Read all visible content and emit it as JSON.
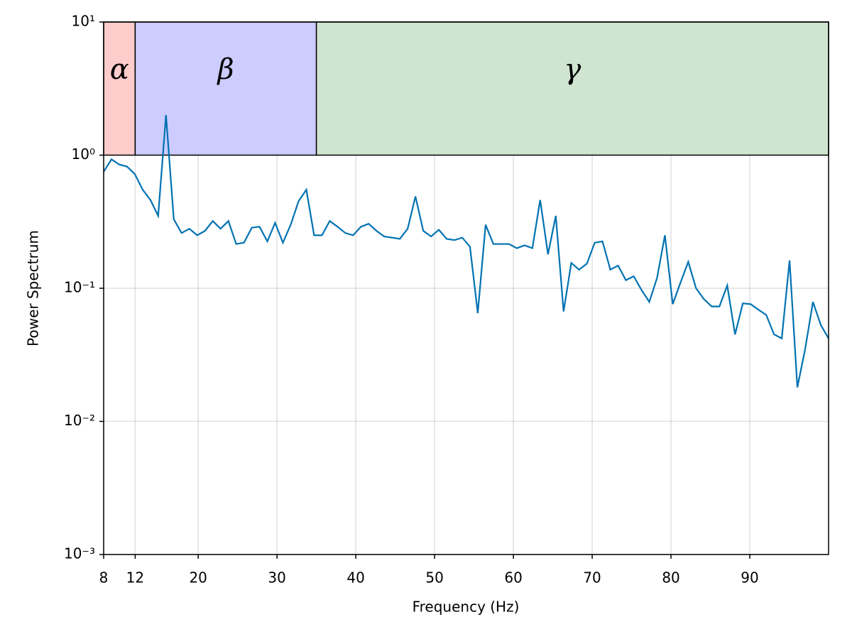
{
  "chart_data": {
    "type": "line",
    "xlabel": "Frequency (Hz)",
    "ylabel": "Power Spectrum",
    "xlim": [
      8,
      100
    ],
    "xticks": [
      8,
      12,
      20,
      30,
      40,
      50,
      60,
      70,
      80,
      90
    ],
    "ylim": [
      0.001,
      10
    ],
    "yscale": "log",
    "yticks": [
      {
        "value": 0.001,
        "label": "10⁻³"
      },
      {
        "value": 0.01,
        "label": "10⁻²"
      },
      {
        "value": 0.1,
        "label": "10⁻¹"
      },
      {
        "value": 1,
        "label": "10⁰"
      },
      {
        "value": 10,
        "label": "10¹"
      }
    ],
    "grid": true,
    "bands": [
      {
        "label": "α",
        "x": [
          8,
          12
        ],
        "y": [
          1,
          10
        ],
        "color": "#ffcccc"
      },
      {
        "label": "β",
        "x": [
          12,
          35
        ],
        "y": [
          1,
          10
        ],
        "color": "#ccccff"
      },
      {
        "label": "γ",
        "x": [
          35,
          100
        ],
        "y": [
          1,
          10
        ],
        "color": "#cfe5cf"
      }
    ],
    "x": [
      8.0,
      8.99,
      9.98,
      10.97,
      11.96,
      12.95,
      13.94,
      14.92,
      15.91,
      16.9,
      17.89,
      18.88,
      19.87,
      20.86,
      21.85,
      22.84,
      23.83,
      24.82,
      25.81,
      26.8,
      27.78,
      28.77,
      29.76,
      30.75,
      31.74,
      32.73,
      33.72,
      34.71,
      35.7,
      36.69,
      37.68,
      38.67,
      39.66,
      40.65,
      41.63,
      42.62,
      43.61,
      44.6,
      45.59,
      46.58,
      47.57,
      48.56,
      49.55,
      50.54,
      51.53,
      52.52,
      53.51,
      54.49,
      55.48,
      56.47,
      57.46,
      58.45,
      59.44,
      60.43,
      61.42,
      62.41,
      63.4,
      64.39,
      65.38,
      66.37,
      67.35,
      68.34,
      69.33,
      70.32,
      71.31,
      72.3,
      73.29,
      74.28,
      75.27,
      76.26,
      77.25,
      78.24,
      79.23,
      80.22,
      81.2,
      82.19,
      83.18,
      84.17,
      85.16,
      86.15,
      87.14,
      88.13,
      89.12,
      90.11,
      91.1,
      92.09,
      93.08,
      94.06,
      95.05,
      96.04,
      97.03,
      98.02,
      99.01,
      100.0
    ],
    "series": [
      {
        "color": "#0072b2",
        "values": [
          0.75,
          0.93,
          0.85,
          0.82,
          0.72,
          0.55,
          0.46,
          0.35,
          2.0,
          0.33,
          0.26,
          0.28,
          0.25,
          0.27,
          0.32,
          0.28,
          0.32,
          0.215,
          0.22,
          0.285,
          0.29,
          0.225,
          0.31,
          0.22,
          0.3,
          0.45,
          0.55,
          0.25,
          0.25,
          0.32,
          0.29,
          0.26,
          0.25,
          0.29,
          0.305,
          0.27,
          0.245,
          0.24,
          0.235,
          0.28,
          0.49,
          0.27,
          0.245,
          0.275,
          0.235,
          0.23,
          0.24,
          0.205,
          0.065,
          0.3,
          0.215,
          0.215,
          0.215,
          0.2,
          0.21,
          0.2,
          0.46,
          0.18,
          0.35,
          0.067,
          0.155,
          0.138,
          0.153,
          0.22,
          0.225,
          0.138,
          0.148,
          0.115,
          0.123,
          0.097,
          0.079,
          0.12,
          0.25,
          0.076,
          0.11,
          0.158,
          0.1,
          0.083,
          0.073,
          0.073,
          0.105,
          0.045,
          0.077,
          0.076,
          0.069,
          0.063,
          0.045,
          0.042,
          0.162,
          0.018,
          0.035,
          0.079,
          0.053,
          0.042
        ]
      }
    ]
  }
}
